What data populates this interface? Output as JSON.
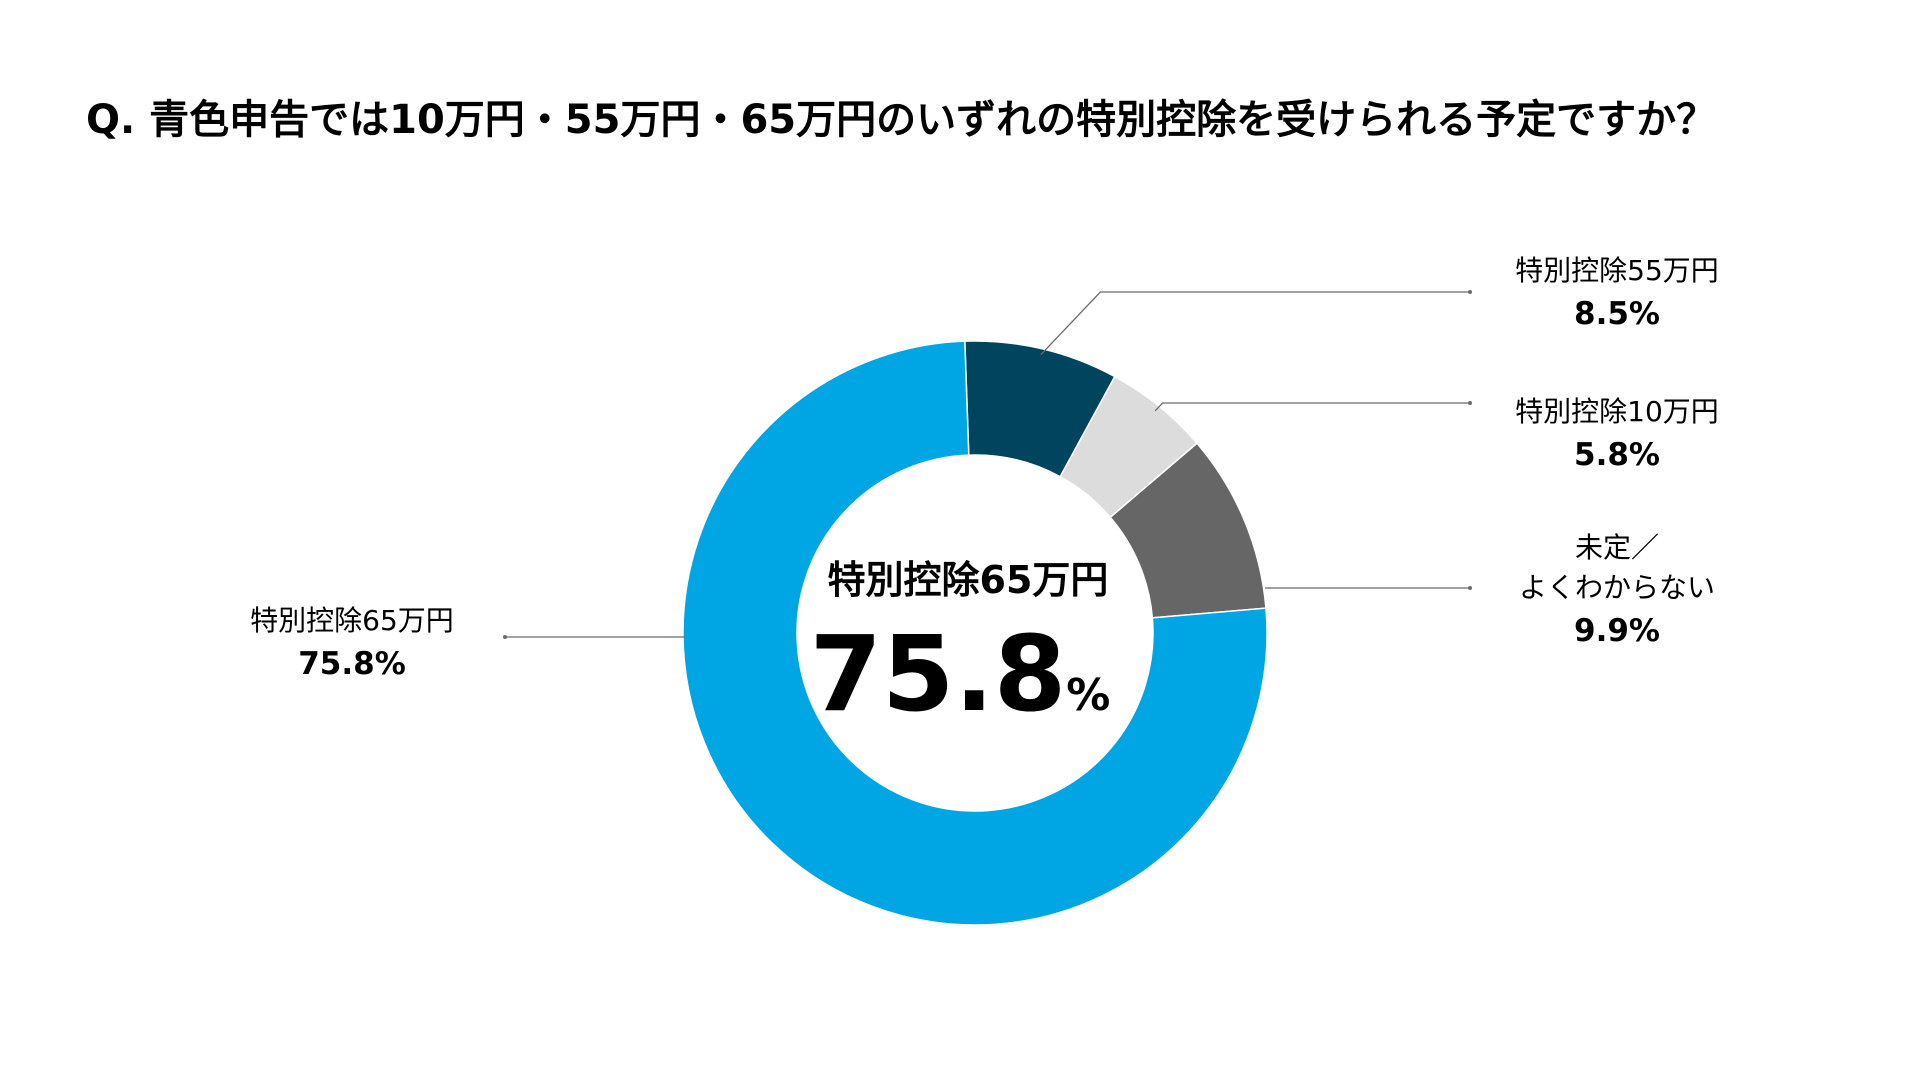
{
  "chart_data": {
    "type": "pie",
    "title": "Q. 青色申告では10万円・55万円・65万円のいずれの特別控除を受けられる予定ですか？",
    "unit": "%",
    "slices": [
      {
        "label": "特別控除55万円",
        "value": 8.5,
        "value_text": "8.5%",
        "color": "#00445E"
      },
      {
        "label": "特別控除10万円",
        "value": 5.8,
        "value_text": "5.8%",
        "color": "#DCDCDC"
      },
      {
        "label_lines": [
          "未定／",
          "よくわからない"
        ],
        "value": 9.9,
        "value_text": "9.9%",
        "color": "#666666"
      },
      {
        "label": "特別控除65万円",
        "value": 75.8,
        "value_text": "75.8%",
        "color": "#00A6E3"
      }
    ],
    "center": {
      "label": "特別控除65万円",
      "number": "75.8",
      "unit": "%"
    },
    "start_angle_deg": -2,
    "direction": "clockwise"
  }
}
